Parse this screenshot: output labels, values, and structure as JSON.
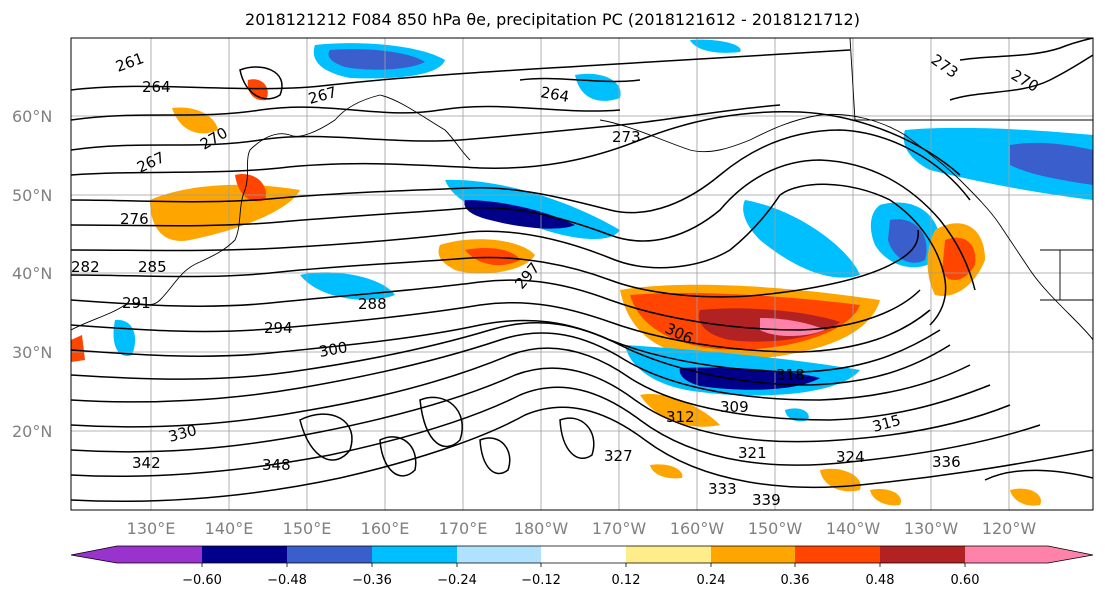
{
  "title": "2018121212 F084 850 hPa θe, precipitation PC (2018121612 - 2018121712)",
  "map": {
    "lat_labels": [
      "60°N",
      "50°N",
      "40°N",
      "30°N",
      "20°N"
    ],
    "lon_labels": [
      "130°E",
      "140°E",
      "150°E",
      "160°E",
      "170°E",
      "180°W",
      "170°W",
      "160°W",
      "150°W",
      "140°W",
      "130°W",
      "120°W"
    ],
    "contour_labels": [
      "261",
      "264",
      "267",
      "270",
      "273",
      "276",
      "282",
      "285",
      "288",
      "291",
      "294",
      "297",
      "300",
      "306",
      "309",
      "312",
      "315",
      "318",
      "321",
      "324",
      "327",
      "330",
      "333",
      "336",
      "339",
      "342",
      "348",
      "264",
      "267",
      "270",
      "273"
    ]
  },
  "colorbar": {
    "colors": [
      "#9a32cd",
      "#00008b",
      "#3a5fcd",
      "#00bfff",
      "#b0e2ff",
      "#ffffff",
      "#ffec8b",
      "#ffa500",
      "#ff4500",
      "#b22222",
      "#ff82ab"
    ],
    "tick_labels": [
      "−0.60",
      "−0.48",
      "−0.36",
      "−0.24",
      "−0.12",
      "0.12",
      "0.24",
      "0.36",
      "0.48",
      "0.60"
    ]
  }
}
